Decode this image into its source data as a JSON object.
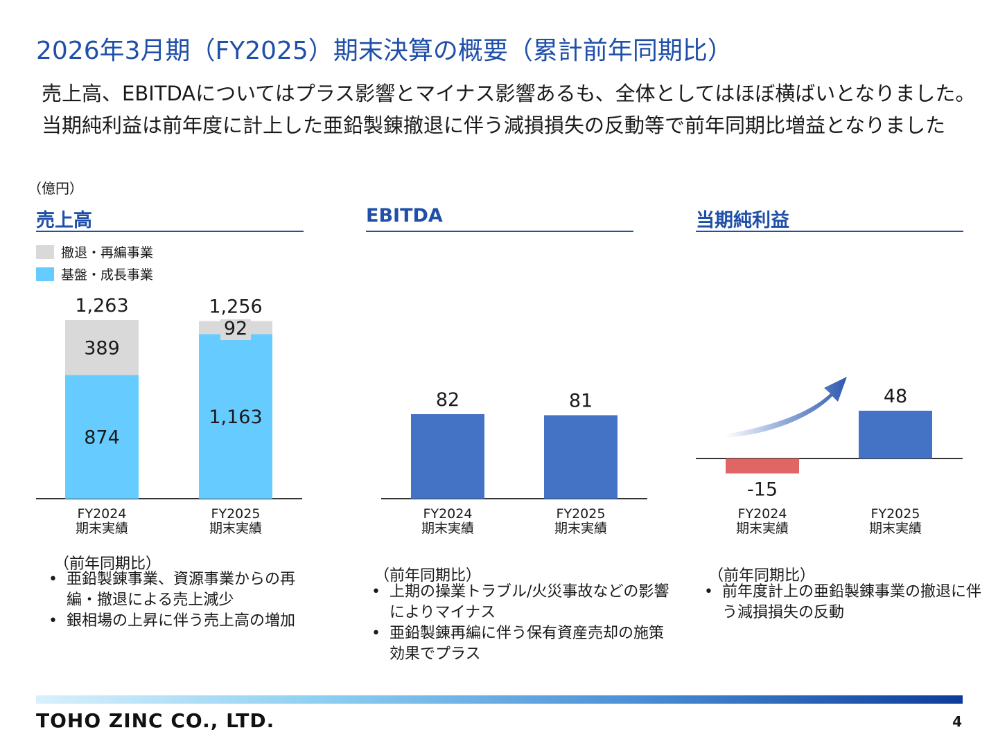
{
  "header": {
    "title": "2026年3月期（FY2025）期末決算の概要（累計前年同期比）",
    "lead": "売上高、EBITDAについてはプラス影響とマイナス影響あるも、全体としてはほぼ横ばいとなりました。当期純利益は前年度に計上した亜鉛製錬撤退に伴う減損損失の反動等で前年同期比増益となりました"
  },
  "unit": "（億円）",
  "sections": [
    {
      "title": "売上高"
    },
    {
      "title": "EBITDA"
    },
    {
      "title": "当期純利益"
    }
  ],
  "legend": [
    {
      "label": "撤退・再編事業",
      "color": "#d9d9d9"
    },
    {
      "label": "基盤・成長事業",
      "color": "#66ccff"
    }
  ],
  "x_labels": [
    {
      "line1": "FY2024",
      "line2": "期末実績"
    },
    {
      "line1": "FY2025",
      "line2": "期末実績"
    }
  ],
  "chart_data": [
    {
      "type": "bar",
      "title": "売上高",
      "categories": [
        "FY2024 期末実績",
        "FY2025 期末実績"
      ],
      "series": [
        {
          "name": "基盤・成長事業",
          "values": [
            874,
            1163
          ],
          "color": "#66ccff"
        },
        {
          "name": "撤退・再編事業",
          "values": [
            389,
            92
          ],
          "color": "#d9d9d9"
        }
      ],
      "totals": [
        1263,
        1256
      ],
      "value_labels": [
        "874",
        "1,163"
      ],
      "top_labels": [
        "389",
        "92"
      ],
      "total_labels": [
        "1,263",
        "1,256"
      ]
    },
    {
      "type": "bar",
      "title": "EBITDA",
      "categories": [
        "FY2024 期末実績",
        "FY2025 期末実績"
      ],
      "values": [
        82,
        81
      ],
      "value_labels": [
        "82",
        "81"
      ],
      "color": "#4472c4"
    },
    {
      "type": "bar",
      "title": "当期純利益",
      "categories": [
        "FY2024 期末実績",
        "FY2025 期末実績"
      ],
      "values": [
        -15,
        48
      ],
      "value_labels": [
        "-15",
        "48"
      ],
      "colors": [
        "#e06666",
        "#4472c4"
      ]
    }
  ],
  "notes": [
    {
      "head": "（前年同期比）",
      "items": [
        "亜鉛製錬事業、資源事業からの再編・撤退による売上減少",
        "銀相場の上昇に伴う売上高の増加"
      ]
    },
    {
      "head": "（前年同期比）",
      "items": [
        "上期の操業トラブル/火災事故などの影響によりマイナス",
        "亜鉛製錬再編に伴う保有資産売却の施策効果でプラス"
      ]
    },
    {
      "head": "（前年同期比）",
      "items": [
        "前年度計上の亜鉛製錬事業の撤退に伴う減損損失の反動"
      ]
    }
  ],
  "footer": {
    "logo": "TOHO ZINC CO., LTD.",
    "page": "4"
  }
}
